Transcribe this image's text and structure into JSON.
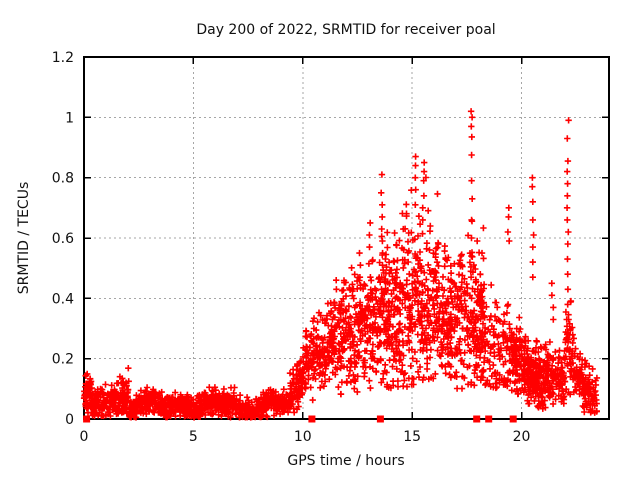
{
  "chart_data": {
    "type": "scatter",
    "title": "Day 200 of 2022, SRMTID for receiver poal",
    "xlabel": "GPS time / hours",
    "ylabel": "SRMTID / TECUs",
    "series_name": "SRMTID",
    "xlim": [
      0,
      24
    ],
    "ylim": [
      0,
      1.2
    ],
    "xticks": {
      "values": [
        0,
        5,
        10,
        15,
        20
      ],
      "labels": [
        "0",
        "5",
        "10",
        "15",
        "20"
      ]
    },
    "yticks": {
      "values": [
        0,
        0.2,
        0.4,
        0.6,
        0.8,
        1.0,
        1.2
      ],
      "labels": [
        "0",
        "0.2",
        "0.4",
        "0.6",
        "0.8",
        "1",
        "1.2"
      ]
    },
    "grid": true,
    "legend_position": "none",
    "marker": "plus",
    "marker_color": "#ff0000",
    "grid_color": "#a6a6a6",
    "border_color": "#000000",
    "seed": 20,
    "band_segments": [
      {
        "x0": 0.0,
        "x1": 0.35,
        "n": 50,
        "m0": 0.085,
        "m1": 0.085,
        "sd": 0.03,
        "min": 0.02,
        "max": 0.15,
        "wiggle": false
      },
      {
        "x0": 0.35,
        "x1": 1.45,
        "n": 130,
        "m0": 0.055,
        "m1": 0.055,
        "sd": 0.025,
        "min": 0.01,
        "max": 0.13,
        "wiggle": false
      },
      {
        "x0": 1.45,
        "x1": 2.05,
        "n": 80,
        "m0": 0.075,
        "m1": 0.075,
        "sd": 0.04,
        "min": 0.015,
        "max": 0.17,
        "wiggle": false
      },
      {
        "x0": 2.05,
        "x1": 9.4,
        "n": 850,
        "m0": 0.045,
        "m1": 0.045,
        "sd": 0.02,
        "min": 0.005,
        "max": 0.13,
        "wiggle": true
      },
      {
        "x0": 9.4,
        "x1": 10.1,
        "n": 90,
        "m0": 0.07,
        "m1": 0.16,
        "sd": 0.035,
        "min": 0.02,
        "max": 0.24,
        "wiggle": false
      },
      {
        "x0": 10.1,
        "x1": 10.45,
        "n": 40,
        "m0": 0.2,
        "m1": 0.2,
        "sd": 0.05,
        "min": 0.1,
        "max": 0.3,
        "wiggle": false
      },
      {
        "x0": 10.45,
        "x1": 11.5,
        "n": 150,
        "m0": 0.2,
        "m1": 0.26,
        "sd": 0.06,
        "min": 0.06,
        "max": 0.46,
        "wiggle": false
      },
      {
        "x0": 11.5,
        "x1": 13.5,
        "n": 270,
        "m0": 0.27,
        "m1": 0.33,
        "sd": 0.09,
        "min": 0.08,
        "max": 0.72,
        "wiggle": false
      },
      {
        "x0": 13.5,
        "x1": 14.5,
        "n": 170,
        "m0": 0.34,
        "m1": 0.34,
        "sd": 0.12,
        "min": 0.1,
        "max": 0.76,
        "wiggle": false
      },
      {
        "x0": 14.5,
        "x1": 16.3,
        "n": 270,
        "m0": 0.4,
        "m1": 0.4,
        "sd": 0.14,
        "min": 0.1,
        "max": 0.87,
        "wiggle": false
      },
      {
        "x0": 16.3,
        "x1": 17.5,
        "n": 180,
        "m0": 0.33,
        "m1": 0.32,
        "sd": 0.11,
        "min": 0.1,
        "max": 0.62,
        "wiggle": false
      },
      {
        "x0": 17.5,
        "x1": 18.3,
        "n": 140,
        "m0": 0.33,
        "m1": 0.33,
        "sd": 0.13,
        "min": 0.11,
        "max": 0.66,
        "wiggle": false
      },
      {
        "x0": 18.3,
        "x1": 19.45,
        "n": 100,
        "m0": 0.26,
        "m1": 0.23,
        "sd": 0.09,
        "min": 0.1,
        "max": 0.52,
        "wiggle": false
      },
      {
        "x0": 19.45,
        "x1": 20.4,
        "n": 160,
        "m0": 0.22,
        "m1": 0.15,
        "sd": 0.055,
        "min": 0.05,
        "max": 0.36,
        "wiggle": false
      },
      {
        "x0": 20.4,
        "x1": 21.1,
        "n": 130,
        "m0": 0.15,
        "m1": 0.12,
        "sd": 0.05,
        "min": 0.03,
        "max": 0.3,
        "wiggle": false
      },
      {
        "x0": 21.1,
        "x1": 22.0,
        "n": 110,
        "m0": 0.17,
        "m1": 0.11,
        "sd": 0.05,
        "min": 0.03,
        "max": 0.32,
        "wiggle": false
      },
      {
        "x0": 22.0,
        "x1": 22.35,
        "n": 45,
        "m0": 0.25,
        "m1": 0.25,
        "sd": 0.09,
        "min": 0.08,
        "max": 0.48,
        "wiggle": false
      },
      {
        "x0": 22.35,
        "x1": 23.45,
        "n": 120,
        "m0": 0.17,
        "m1": 0.05,
        "sd": 0.04,
        "min": 0.015,
        "max": 0.27,
        "wiggle": false
      }
    ],
    "spike_columns": [
      {
        "x": 13.62,
        "ys": [
          0.81,
          0.75,
          0.71,
          0.67,
          0.63,
          0.59,
          0.55,
          0.51,
          0.47,
          0.43
        ]
      },
      {
        "x": 12.62,
        "ys": [
          0.55,
          0.51,
          0.47
        ]
      },
      {
        "x": 13.05,
        "ys": [
          0.65,
          0.61,
          0.57
        ]
      },
      {
        "x": 11.52,
        "ys": [
          0.46,
          0.43
        ]
      },
      {
        "x": 15.18,
        "ys": [
          0.87,
          0.84,
          0.8,
          0.76,
          0.71
        ]
      },
      {
        "x": 15.52,
        "ys": [
          0.85,
          0.82,
          0.79,
          0.74,
          0.7,
          0.66
        ]
      },
      {
        "x": 17.72,
        "ys": [
          1.02,
          1.0,
          0.97,
          0.935,
          0.875,
          0.79,
          0.73,
          0.66,
          0.6,
          0.54,
          0.47,
          0.4,
          0.34
        ]
      },
      {
        "x": 19.42,
        "ys": [
          0.7,
          0.67,
          0.62,
          0.59
        ]
      },
      {
        "x": 20.52,
        "ys": [
          0.8,
          0.77,
          0.72,
          0.66,
          0.61,
          0.57,
          0.52,
          0.47
        ]
      },
      {
        "x": 21.42,
        "ys": [
          0.45,
          0.41,
          0.37,
          0.33
        ]
      },
      {
        "x": 22.12,
        "ys": [
          0.99,
          0.93,
          0.855,
          0.82,
          0.78,
          0.74,
          0.7,
          0.66,
          0.62,
          0.58,
          0.53,
          0.48,
          0.43,
          0.38,
          0.33,
          0.28
        ]
      }
    ],
    "zero_markers_x": [
      0.12,
      10.42,
      13.55,
      17.95,
      18.5,
      19.62
    ]
  }
}
